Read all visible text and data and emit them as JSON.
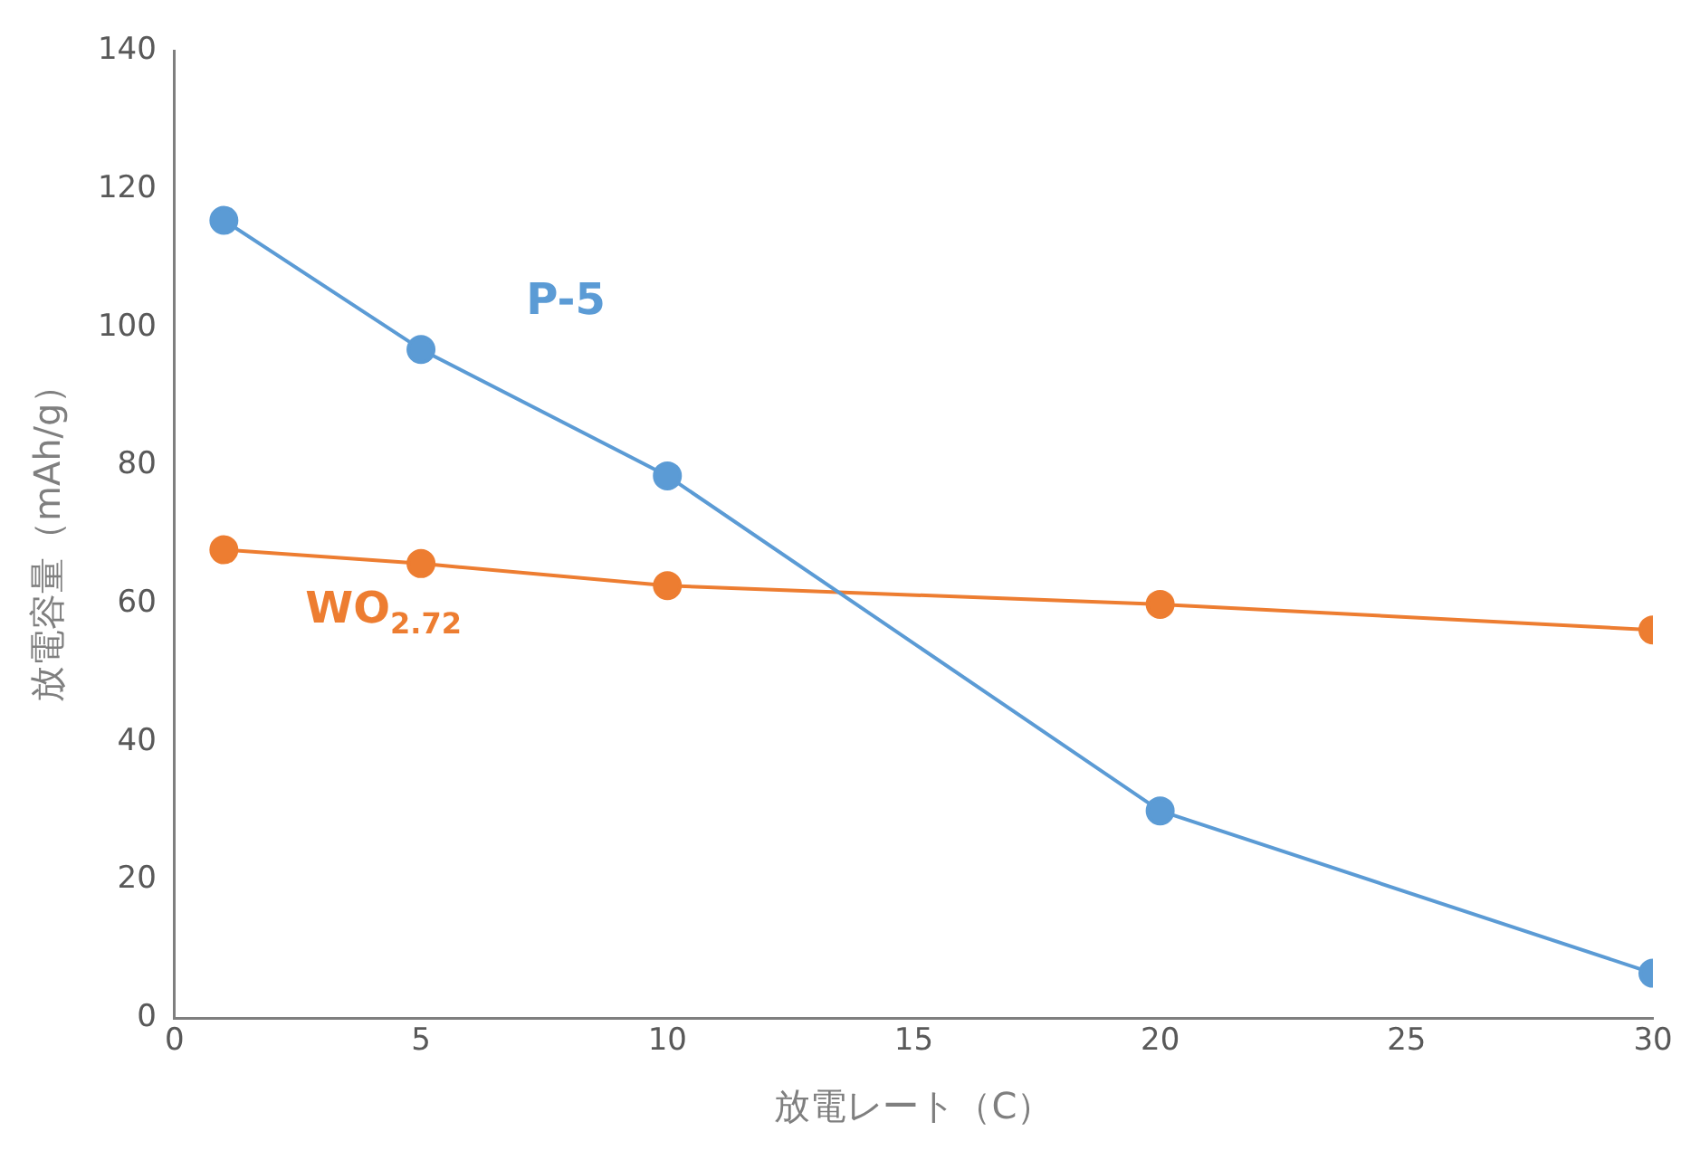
{
  "chart_data": {
    "type": "line",
    "xlabel": "放電レート（C）",
    "ylabel": "放電容量（mAh/g）",
    "x": [
      1,
      5,
      10,
      20,
      30
    ],
    "series": [
      {
        "name": "P-5",
        "color": "#5b9bd5",
        "values": [
          115.5,
          96.8,
          78.5,
          30,
          6.5
        ]
      },
      {
        "name": "WO$_{2.72}$",
        "color": "#ed7d31",
        "values": [
          67.8,
          65.8,
          62.6,
          59.9,
          56.2
        ]
      }
    ],
    "xlim": [
      0,
      30
    ],
    "xticks": [
      0,
      5,
      10,
      15,
      20,
      25,
      30
    ],
    "ylim": [
      0,
      140
    ],
    "yticks": [
      0,
      20,
      40,
      60,
      80,
      100,
      120,
      140
    ],
    "grid": false,
    "legend": false,
    "marker": "circle",
    "line_style": "solid"
  }
}
